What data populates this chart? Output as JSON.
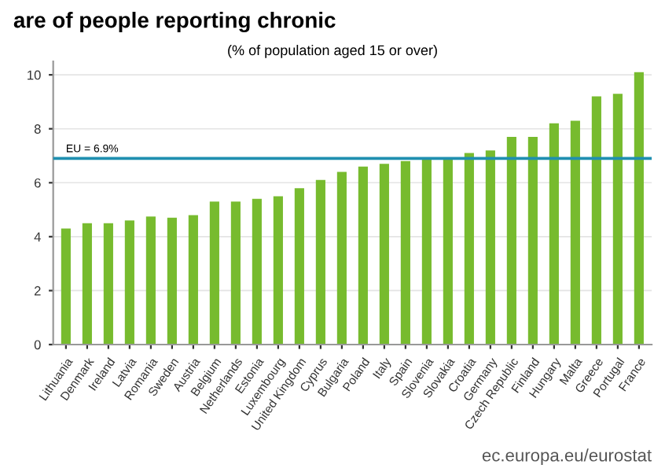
{
  "chart_data": {
    "type": "bar",
    "title": "are of people reporting chronic",
    "subtitle": "(% of population aged 15 or over)",
    "categories": [
      "Lithuania",
      "Denmark",
      "Ireland",
      "Latvia",
      "Romania",
      "Sweden",
      "Austria",
      "Belgium",
      "Netherlands",
      "Estonia",
      "Luxembourg",
      "United Kingdom",
      "Cyprus",
      "Bulgaria",
      "Poland",
      "Italy",
      "Spain",
      "Slovenia",
      "Slovakia",
      "Croatia",
      "Germany",
      "Czech Republic",
      "Finland",
      "Hungary",
      "Malta",
      "Greece",
      "Portugal",
      "France"
    ],
    "values": [
      4.3,
      4.5,
      4.5,
      4.6,
      4.75,
      4.7,
      4.8,
      5.3,
      5.3,
      5.4,
      5.5,
      5.8,
      6.1,
      6.4,
      6.6,
      6.7,
      6.8,
      6.9,
      6.9,
      7.1,
      7.2,
      7.7,
      7.7,
      8.2,
      8.3,
      9.2,
      9.3,
      10.1
    ],
    "color": "#77bb2e",
    "ylim": [
      0,
      10.5
    ],
    "yticks": [
      0,
      2,
      4,
      6,
      8,
      10
    ],
    "grid": "y",
    "ref_lines": [
      {
        "axis": "y",
        "value": 6.9,
        "label": "EU = 6.9%",
        "color": "#1f8fb0"
      }
    ],
    "annotations": [
      "ec.europa.eu/eurostat"
    ]
  }
}
